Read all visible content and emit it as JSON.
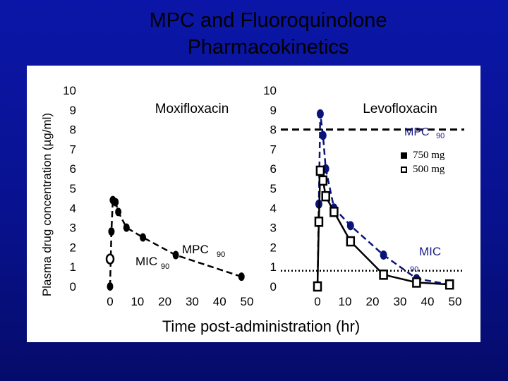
{
  "title": {
    "line1": "MPC and Fluoroquinolone",
    "line2": "Pharmacokinetics"
  },
  "y_axis_label": "Plasma drug concentration (µg/ml)",
  "x_axis_label": "Time post-administration (hr)",
  "colors": {
    "background": "#0b16a8",
    "panel": "#ffffff",
    "levo_series": "#0a1478",
    "moxi_series": "#000000",
    "mpc_label": "#1a1a8c"
  },
  "legend": {
    "filled": "750 mg",
    "open": "500 mg"
  },
  "chart_data": [
    {
      "type": "line",
      "panel_title": "Moxifloxacin",
      "xticks": [
        "0",
        "10",
        "20",
        "30",
        "40",
        "50"
      ],
      "yticks": [
        "10",
        "9",
        "8",
        "7",
        "6",
        "5",
        "4",
        "3",
        "2",
        "1",
        "0"
      ],
      "xlim": [
        0,
        50
      ],
      "ylim": [
        0,
        10
      ],
      "annotations": {
        "mpc_label": "MPC",
        "mpc_sub": "90",
        "mic_label": "MIC",
        "mic_sub": "90"
      },
      "series": [
        {
          "style": "filled",
          "x": [
            0,
            0.5,
            1,
            2,
            3,
            6,
            12,
            24,
            48
          ],
          "y": [
            0,
            2.8,
            4.4,
            4.3,
            3.8,
            3.0,
            2.5,
            1.6,
            0.5
          ]
        },
        {
          "style": "open",
          "x": [
            0
          ],
          "y": [
            1.4
          ]
        }
      ]
    },
    {
      "type": "line",
      "panel_title": "Levofloxacin",
      "xticks": [
        "0",
        "10",
        "20",
        "30",
        "40",
        "50"
      ],
      "yticks": [
        "10",
        "9",
        "8",
        "7",
        "6",
        "5",
        "4",
        "3",
        "2",
        "1",
        "0"
      ],
      "xlim": [
        0,
        50
      ],
      "ylim": [
        0,
        10
      ],
      "reference_lines": [
        {
          "label": "MPC",
          "sub": "90",
          "y": 8.0,
          "style": "dashed"
        },
        {
          "label": "MIC",
          "sub": "90",
          "y": 0.8,
          "style": "dotted"
        }
      ],
      "series": [
        {
          "name": "750 mg",
          "style": "filled",
          "x": [
            0,
            0.5,
            1,
            2,
            3,
            6,
            12,
            24,
            36,
            48
          ],
          "y": [
            0,
            4.2,
            8.8,
            7.7,
            6.0,
            4.0,
            3.1,
            1.6,
            0.4,
            0.1
          ]
        },
        {
          "name": "500 mg",
          "style": "open",
          "x": [
            0,
            0.5,
            1,
            2,
            3,
            6,
            12,
            24,
            36,
            48
          ],
          "y": [
            0,
            3.3,
            5.9,
            5.4,
            4.6,
            3.8,
            2.3,
            0.6,
            0.2,
            0.1
          ]
        }
      ]
    }
  ]
}
